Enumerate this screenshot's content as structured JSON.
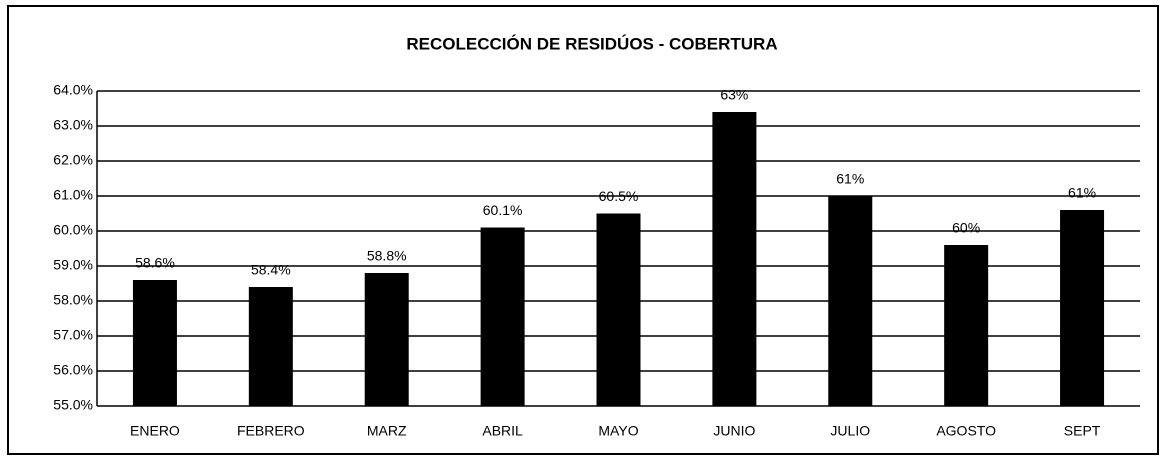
{
  "chart_data": {
    "type": "bar",
    "title": "RECOLECCIÓN DE RESIDÚOS - COBERTURA",
    "categories": [
      "ENERO",
      "FEBRERO",
      "MARZ",
      "ABRIL",
      "MAYO",
      "JUNIO",
      "JULIO",
      "AGOSTO",
      "SEPT"
    ],
    "values": [
      58.6,
      58.4,
      58.8,
      60.1,
      60.5,
      63.4,
      61.0,
      59.6,
      60.6
    ],
    "value_labels": [
      "58.6%",
      "58.4%",
      "58.8%",
      "60.1%",
      "60.5%",
      "63%",
      "61%",
      "60%",
      "61%"
    ],
    "color": "#000000",
    "ylim": [
      55,
      64
    ],
    "yticks": [
      {
        "value": 55,
        "label": "55.0%"
      },
      {
        "value": 56,
        "label": "56.0%"
      },
      {
        "value": 57,
        "label": "57.0%"
      },
      {
        "value": 58,
        "label": "58.0%"
      },
      {
        "value": 59,
        "label": "59.0%"
      },
      {
        "value": 60,
        "label": "60.0%"
      },
      {
        "value": 61,
        "label": "61.0%"
      },
      {
        "value": 62,
        "label": "62.0%"
      },
      {
        "value": 63,
        "label": "63.0%"
      },
      {
        "value": 64,
        "label": "64.0%"
      }
    ],
    "grid": true
  }
}
